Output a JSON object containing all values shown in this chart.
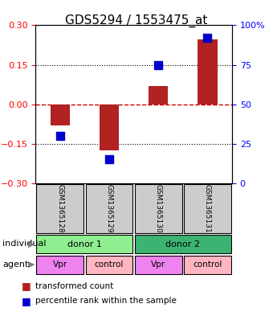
{
  "title": "GDS5294 / 1553475_at",
  "samples": [
    "GSM1365128",
    "GSM1365129",
    "GSM1365130",
    "GSM1365131"
  ],
  "red_values": [
    -0.08,
    -0.175,
    0.07,
    0.245
  ],
  "blue_values": [
    30,
    15,
    75,
    92
  ],
  "ylim_left": [
    -0.3,
    0.3
  ],
  "ylim_right": [
    0,
    100
  ],
  "yticks_left": [
    -0.3,
    -0.15,
    0,
    0.15,
    0.3
  ],
  "yticks_right": [
    0,
    25,
    50,
    75,
    100
  ],
  "hlines": [
    -0.15,
    0,
    0.15
  ],
  "individuals": [
    [
      "donor 1",
      2
    ],
    [
      "donor 2",
      2
    ]
  ],
  "agents": [
    "Vpr",
    "control",
    "Vpr",
    "control"
  ],
  "bar_color": "#b22222",
  "dot_color": "#0000cd",
  "bar_width": 0.4,
  "dot_size": 60,
  "bg_color": "#ffffff",
  "plot_bg": "#ffffff",
  "grid_color": "#000000",
  "zero_line_color": "#cc0000",
  "zero_line_style": "--",
  "dotted_line_style": ":",
  "sample_box_color": "#cccccc",
  "donor1_color": "#90ee90",
  "donor2_color": "#3cb371",
  "vpr_color": "#ee82ee",
  "control_color": "#ffb6c1",
  "title_fontsize": 11,
  "tick_fontsize": 8,
  "label_fontsize": 8,
  "legend_fontsize": 7.5
}
